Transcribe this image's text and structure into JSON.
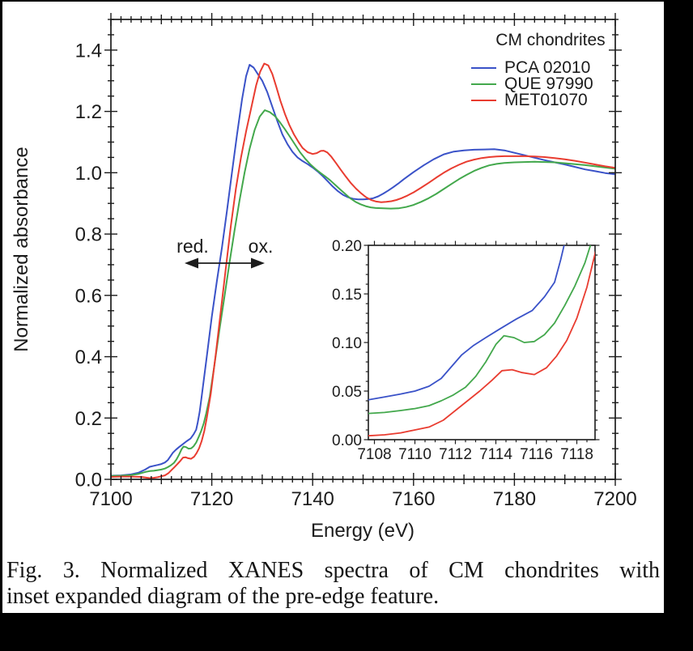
{
  "caption": {
    "line1": "Fig. 3. Normalized XANES spectra of CM chondrites with",
    "line2": "inset expanded diagram of the pre-edge feature."
  },
  "chart_data": {
    "type": "line",
    "main": {
      "xlabel": "Energy (eV)",
      "ylabel": "Normalized absorbance",
      "xlim": [
        7100,
        7200
      ],
      "ylim": [
        0,
        1.5
      ],
      "grid": false,
      "x_ticks": [
        {
          "v": 7100,
          "label": "7100"
        },
        {
          "v": 7120,
          "label": "7120"
        },
        {
          "v": 7140,
          "label": "7140"
        },
        {
          "v": 7160,
          "label": "7160"
        },
        {
          "v": 7180,
          "label": "7180"
        },
        {
          "v": 7200,
          "label": "7200"
        }
      ],
      "y_ticks": [
        {
          "v": 0.0,
          "label": "0.0"
        },
        {
          "v": 0.2,
          "label": "0.2"
        },
        {
          "v": 0.4,
          "label": "0.4"
        },
        {
          "v": 0.6,
          "label": "0.6"
        },
        {
          "v": 0.8,
          "label": "0.8"
        },
        {
          "v": 1.0,
          "label": "1.0"
        },
        {
          "v": 1.2,
          "label": "1.2"
        },
        {
          "v": 1.4,
          "label": "1.4"
        }
      ],
      "x_minor_step": 2,
      "x_medium_step": 10,
      "y_minor_step": 0.05
    },
    "inset": {
      "description": "expanded pre-edge feature",
      "xlim": [
        7107.7,
        7118.9
      ],
      "ylim": [
        0,
        0.2
      ],
      "x_ticks": [
        {
          "v": 7108,
          "label": "7108"
        },
        {
          "v": 7110,
          "label": "7110"
        },
        {
          "v": 7112,
          "label": "7112"
        },
        {
          "v": 7114,
          "label": "7114"
        },
        {
          "v": 7116,
          "label": "7116"
        },
        {
          "v": 7118,
          "label": "7118"
        }
      ],
      "y_ticks": [
        {
          "v": 0.0,
          "label": "0.00"
        },
        {
          "v": 0.05,
          "label": "0.05"
        },
        {
          "v": 0.1,
          "label": "0.10"
        },
        {
          "v": 0.15,
          "label": "0.15"
        },
        {
          "v": 0.2,
          "label": "0.20"
        }
      ],
      "x_minor_step": 0.5,
      "y_minor_step": 0.01
    },
    "legend": {
      "title": "CM chondrites",
      "position": "top-right"
    },
    "annotation": {
      "left_label": "red.",
      "right_label": "ox.",
      "arrow": "double-headed horizontal arrow at y=0.70 spanning the absorption edge"
    },
    "series": [
      {
        "name": "PCA 02010",
        "color": "#3a52c8",
        "points": [
          [
            7100,
            0.012
          ],
          [
            7102,
            0.013
          ],
          [
            7104,
            0.016
          ],
          [
            7105.5,
            0.022
          ],
          [
            7106.8,
            0.032
          ],
          [
            7107.7,
            0.041
          ],
          [
            7108.5,
            0.044
          ],
          [
            7109.3,
            0.047
          ],
          [
            7110,
            0.05
          ],
          [
            7110.7,
            0.055
          ],
          [
            7111.3,
            0.063
          ],
          [
            7111.8,
            0.075
          ],
          [
            7112.3,
            0.087
          ],
          [
            7112.9,
            0.097
          ],
          [
            7113.5,
            0.105
          ],
          [
            7114.2,
            0.114
          ],
          [
            7115,
            0.124
          ],
          [
            7115.8,
            0.133
          ],
          [
            7116.4,
            0.147
          ],
          [
            7116.9,
            0.162
          ],
          [
            7117.2,
            0.185
          ],
          [
            7117.6,
            0.22
          ],
          [
            7118,
            0.27
          ],
          [
            7119,
            0.4
          ],
          [
            7120,
            0.53
          ],
          [
            7121,
            0.645
          ],
          [
            7122,
            0.755
          ],
          [
            7123,
            0.875
          ],
          [
            7124,
            1.0
          ],
          [
            7125,
            1.125
          ],
          [
            7126,
            1.24
          ],
          [
            7126.8,
            1.315
          ],
          [
            7127.5,
            1.352
          ],
          [
            7128.3,
            1.343
          ],
          [
            7129,
            1.325
          ],
          [
            7130,
            1.3
          ],
          [
            7131,
            1.263
          ],
          [
            7132,
            1.215
          ],
          [
            7133,
            1.168
          ],
          [
            7134,
            1.125
          ],
          [
            7135,
            1.093
          ],
          [
            7136,
            1.068
          ],
          [
            7137,
            1.05
          ],
          [
            7138,
            1.038
          ],
          [
            7139,
            1.028
          ],
          [
            7140,
            1.017
          ],
          [
            7141,
            1.004
          ],
          [
            7142,
            0.989
          ],
          [
            7143,
            0.972
          ],
          [
            7144,
            0.955
          ],
          [
            7145,
            0.94
          ],
          [
            7146,
            0.928
          ],
          [
            7147,
            0.92
          ],
          [
            7148,
            0.915
          ],
          [
            7149,
            0.913
          ],
          [
            7150,
            0.913
          ],
          [
            7151,
            0.914
          ],
          [
            7152,
            0.917
          ],
          [
            7153,
            0.923
          ],
          [
            7154,
            0.932
          ],
          [
            7155,
            0.942
          ],
          [
            7156,
            0.953
          ],
          [
            7157,
            0.965
          ],
          [
            7158,
            0.978
          ],
          [
            7159,
            0.99
          ],
          [
            7160,
            1.002
          ],
          [
            7162,
            1.024
          ],
          [
            7164,
            1.044
          ],
          [
            7166,
            1.06
          ],
          [
            7168,
            1.069
          ],
          [
            7170,
            1.073
          ],
          [
            7172,
            1.075
          ],
          [
            7174,
            1.076
          ],
          [
            7176,
            1.077
          ],
          [
            7178,
            1.073
          ],
          [
            7180,
            1.065
          ],
          [
            7182,
            1.057
          ],
          [
            7184,
            1.049
          ],
          [
            7186,
            1.041
          ],
          [
            7188,
            1.034
          ],
          [
            7190,
            1.027
          ],
          [
            7192,
            1.019
          ],
          [
            7194,
            1.011
          ],
          [
            7196,
            1.005
          ],
          [
            7198,
            0.999
          ],
          [
            7200,
            0.995
          ]
        ]
      },
      {
        "name": "QUE 97990",
        "color": "#43a84c",
        "points": [
          [
            7100,
            0.011
          ],
          [
            7102,
            0.012
          ],
          [
            7104,
            0.014
          ],
          [
            7105.5,
            0.018
          ],
          [
            7106.8,
            0.024
          ],
          [
            7107.7,
            0.027
          ],
          [
            7108.5,
            0.028
          ],
          [
            7109.3,
            0.03
          ],
          [
            7110,
            0.032
          ],
          [
            7110.7,
            0.035
          ],
          [
            7111.3,
            0.04
          ],
          [
            7111.9,
            0.046
          ],
          [
            7112.5,
            0.054
          ],
          [
            7113,
            0.065
          ],
          [
            7113.5,
            0.08
          ],
          [
            7114,
            0.098
          ],
          [
            7114.4,
            0.107
          ],
          [
            7114.9,
            0.105
          ],
          [
            7115.4,
            0.1
          ],
          [
            7115.9,
            0.101
          ],
          [
            7116.4,
            0.108
          ],
          [
            7116.9,
            0.12
          ],
          [
            7117.4,
            0.138
          ],
          [
            7117.9,
            0.158
          ],
          [
            7118.4,
            0.182
          ],
          [
            7118.9,
            0.215
          ],
          [
            7119.6,
            0.27
          ],
          [
            7120.5,
            0.37
          ],
          [
            7121.5,
            0.485
          ],
          [
            7122.5,
            0.595
          ],
          [
            7123.5,
            0.705
          ],
          [
            7124.5,
            0.81
          ],
          [
            7125.5,
            0.91
          ],
          [
            7126.5,
            1.0
          ],
          [
            7127.5,
            1.078
          ],
          [
            7128.5,
            1.14
          ],
          [
            7129.5,
            1.183
          ],
          [
            7130.5,
            1.204
          ],
          [
            7131.5,
            1.198
          ],
          [
            7132.5,
            1.185
          ],
          [
            7133.5,
            1.165
          ],
          [
            7134.5,
            1.142
          ],
          [
            7135.5,
            1.117
          ],
          [
            7136.5,
            1.092
          ],
          [
            7137.5,
            1.067
          ],
          [
            7138.5,
            1.046
          ],
          [
            7139.5,
            1.028
          ],
          [
            7140.5,
            1.013
          ],
          [
            7141.5,
            1.0
          ],
          [
            7142.5,
            0.988
          ],
          [
            7143.5,
            0.975
          ],
          [
            7144.5,
            0.96
          ],
          [
            7145.5,
            0.945
          ],
          [
            7146.5,
            0.93
          ],
          [
            7147.5,
            0.916
          ],
          [
            7148.5,
            0.905
          ],
          [
            7149.5,
            0.897
          ],
          [
            7150.5,
            0.891
          ],
          [
            7151.5,
            0.887
          ],
          [
            7152.5,
            0.885
          ],
          [
            7154,
            0.884
          ],
          [
            7155.5,
            0.883
          ],
          [
            7157,
            0.884
          ],
          [
            7158.5,
            0.888
          ],
          [
            7160,
            0.895
          ],
          [
            7161.5,
            0.905
          ],
          [
            7163,
            0.917
          ],
          [
            7164.5,
            0.931
          ],
          [
            7166,
            0.947
          ],
          [
            7167.5,
            0.963
          ],
          [
            7169,
            0.979
          ],
          [
            7170.5,
            0.993
          ],
          [
            7172,
            1.006
          ],
          [
            7173.5,
            1.016
          ],
          [
            7175,
            1.024
          ],
          [
            7176.5,
            1.029
          ],
          [
            7178,
            1.032
          ],
          [
            7180,
            1.034
          ],
          [
            7182,
            1.035
          ],
          [
            7184,
            1.036
          ],
          [
            7186,
            1.035
          ],
          [
            7188,
            1.034
          ],
          [
            7190,
            1.031
          ],
          [
            7192,
            1.028
          ],
          [
            7194,
            1.025
          ],
          [
            7196,
            1.021
          ],
          [
            7198,
            1.017
          ],
          [
            7200,
            1.013
          ]
        ]
      },
      {
        "name": "MET01070",
        "color": "#e93c30",
        "points": [
          [
            7100,
            0.008
          ],
          [
            7102,
            0.009
          ],
          [
            7104,
            0.009
          ],
          [
            7106,
            0.008
          ],
          [
            7107.7,
            0.004
          ],
          [
            7108.5,
            0.005
          ],
          [
            7109.3,
            0.007
          ],
          [
            7110,
            0.01
          ],
          [
            7110.7,
            0.013
          ],
          [
            7111.4,
            0.02
          ],
          [
            7112,
            0.03
          ],
          [
            7112.6,
            0.04
          ],
          [
            7113.2,
            0.05
          ],
          [
            7113.8,
            0.061
          ],
          [
            7114.3,
            0.071
          ],
          [
            7114.8,
            0.072
          ],
          [
            7115.3,
            0.069
          ],
          [
            7115.9,
            0.067
          ],
          [
            7116.5,
            0.074
          ],
          [
            7117,
            0.086
          ],
          [
            7117.5,
            0.102
          ],
          [
            7118,
            0.125
          ],
          [
            7118.5,
            0.157
          ],
          [
            7119,
            0.2
          ],
          [
            7119.8,
            0.28
          ],
          [
            7120.8,
            0.41
          ],
          [
            7121.8,
            0.55
          ],
          [
            7122.8,
            0.69
          ],
          [
            7123.8,
            0.83
          ],
          [
            7124.8,
            0.95
          ],
          [
            7125.8,
            1.05
          ],
          [
            7126.8,
            1.135
          ],
          [
            7127.8,
            1.21
          ],
          [
            7128.8,
            1.285
          ],
          [
            7129.6,
            1.33
          ],
          [
            7130.4,
            1.356
          ],
          [
            7131.2,
            1.35
          ],
          [
            7132,
            1.322
          ],
          [
            7132.8,
            1.28
          ],
          [
            7133.6,
            1.235
          ],
          [
            7134.5,
            1.192
          ],
          [
            7135.4,
            1.155
          ],
          [
            7136.3,
            1.125
          ],
          [
            7137.2,
            1.1
          ],
          [
            7138,
            1.081
          ],
          [
            7139,
            1.067
          ],
          [
            7140,
            1.061
          ],
          [
            7140.8,
            1.064
          ],
          [
            7141.6,
            1.071
          ],
          [
            7142.2,
            1.072
          ],
          [
            7142.9,
            1.066
          ],
          [
            7143.7,
            1.052
          ],
          [
            7144.6,
            1.032
          ],
          [
            7145.6,
            1.009
          ],
          [
            7146.6,
            0.987
          ],
          [
            7147.6,
            0.966
          ],
          [
            7148.6,
            0.948
          ],
          [
            7149.6,
            0.933
          ],
          [
            7150.6,
            0.92
          ],
          [
            7151.6,
            0.911
          ],
          [
            7152.6,
            0.906
          ],
          [
            7153.6,
            0.904
          ],
          [
            7154.6,
            0.905
          ],
          [
            7155.6,
            0.907
          ],
          [
            7156.6,
            0.911
          ],
          [
            7157.6,
            0.917
          ],
          [
            7158.6,
            0.924
          ],
          [
            7160,
            0.936
          ],
          [
            7161.5,
            0.951
          ],
          [
            7163,
            0.967
          ],
          [
            7164.5,
            0.984
          ],
          [
            7166,
            1.0
          ],
          [
            7167.5,
            1.014
          ],
          [
            7169,
            1.026
          ],
          [
            7170.5,
            1.036
          ],
          [
            7172,
            1.043
          ],
          [
            7173.5,
            1.048
          ],
          [
            7175,
            1.051
          ],
          [
            7176.5,
            1.053
          ],
          [
            7178,
            1.054
          ],
          [
            7180,
            1.054
          ],
          [
            7182,
            1.054
          ],
          [
            7184,
            1.053
          ],
          [
            7186,
            1.051
          ],
          [
            7188,
            1.048
          ],
          [
            7190,
            1.044
          ],
          [
            7192,
            1.039
          ],
          [
            7194,
            1.033
          ],
          [
            7196,
            1.027
          ],
          [
            7198,
            1.021
          ],
          [
            7200,
            1.016
          ]
        ]
      }
    ]
  }
}
